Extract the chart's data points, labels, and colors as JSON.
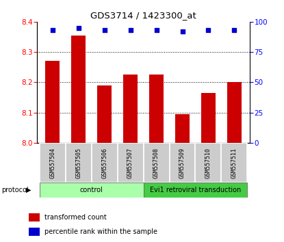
{
  "title": "GDS3714 / 1423300_at",
  "samples": [
    "GSM557504",
    "GSM557505",
    "GSM557506",
    "GSM557507",
    "GSM557508",
    "GSM557509",
    "GSM557510",
    "GSM557511"
  ],
  "bar_values": [
    8.27,
    8.355,
    8.19,
    8.225,
    8.225,
    8.095,
    8.165,
    8.2
  ],
  "percentile_values": [
    93,
    95,
    93,
    93,
    93,
    92,
    93,
    93
  ],
  "bar_color": "#cc0000",
  "percentile_color": "#0000cc",
  "ylim_left": [
    8.0,
    8.4
  ],
  "ylim_right": [
    0,
    100
  ],
  "yticks_left": [
    8.0,
    8.1,
    8.2,
    8.3,
    8.4
  ],
  "yticks_right": [
    0,
    25,
    50,
    75,
    100
  ],
  "grid_ticks": [
    8.1,
    8.2,
    8.3
  ],
  "protocol_groups": [
    {
      "label": "control",
      "start": 0,
      "end": 4,
      "color": "#aaffaa"
    },
    {
      "label": "Evi1 retroviral transduction",
      "start": 4,
      "end": 8,
      "color": "#44cc44"
    }
  ],
  "protocol_label": "protocol",
  "legend_items": [
    {
      "label": "transformed count",
      "color": "#cc0000"
    },
    {
      "label": "percentile rank within the sample",
      "color": "#0000cc"
    }
  ],
  "bg_color": "#ffffff",
  "sample_box_color": "#cccccc",
  "bar_width": 0.55,
  "figsize": [
    4.15,
    3.54
  ],
  "dpi": 100
}
